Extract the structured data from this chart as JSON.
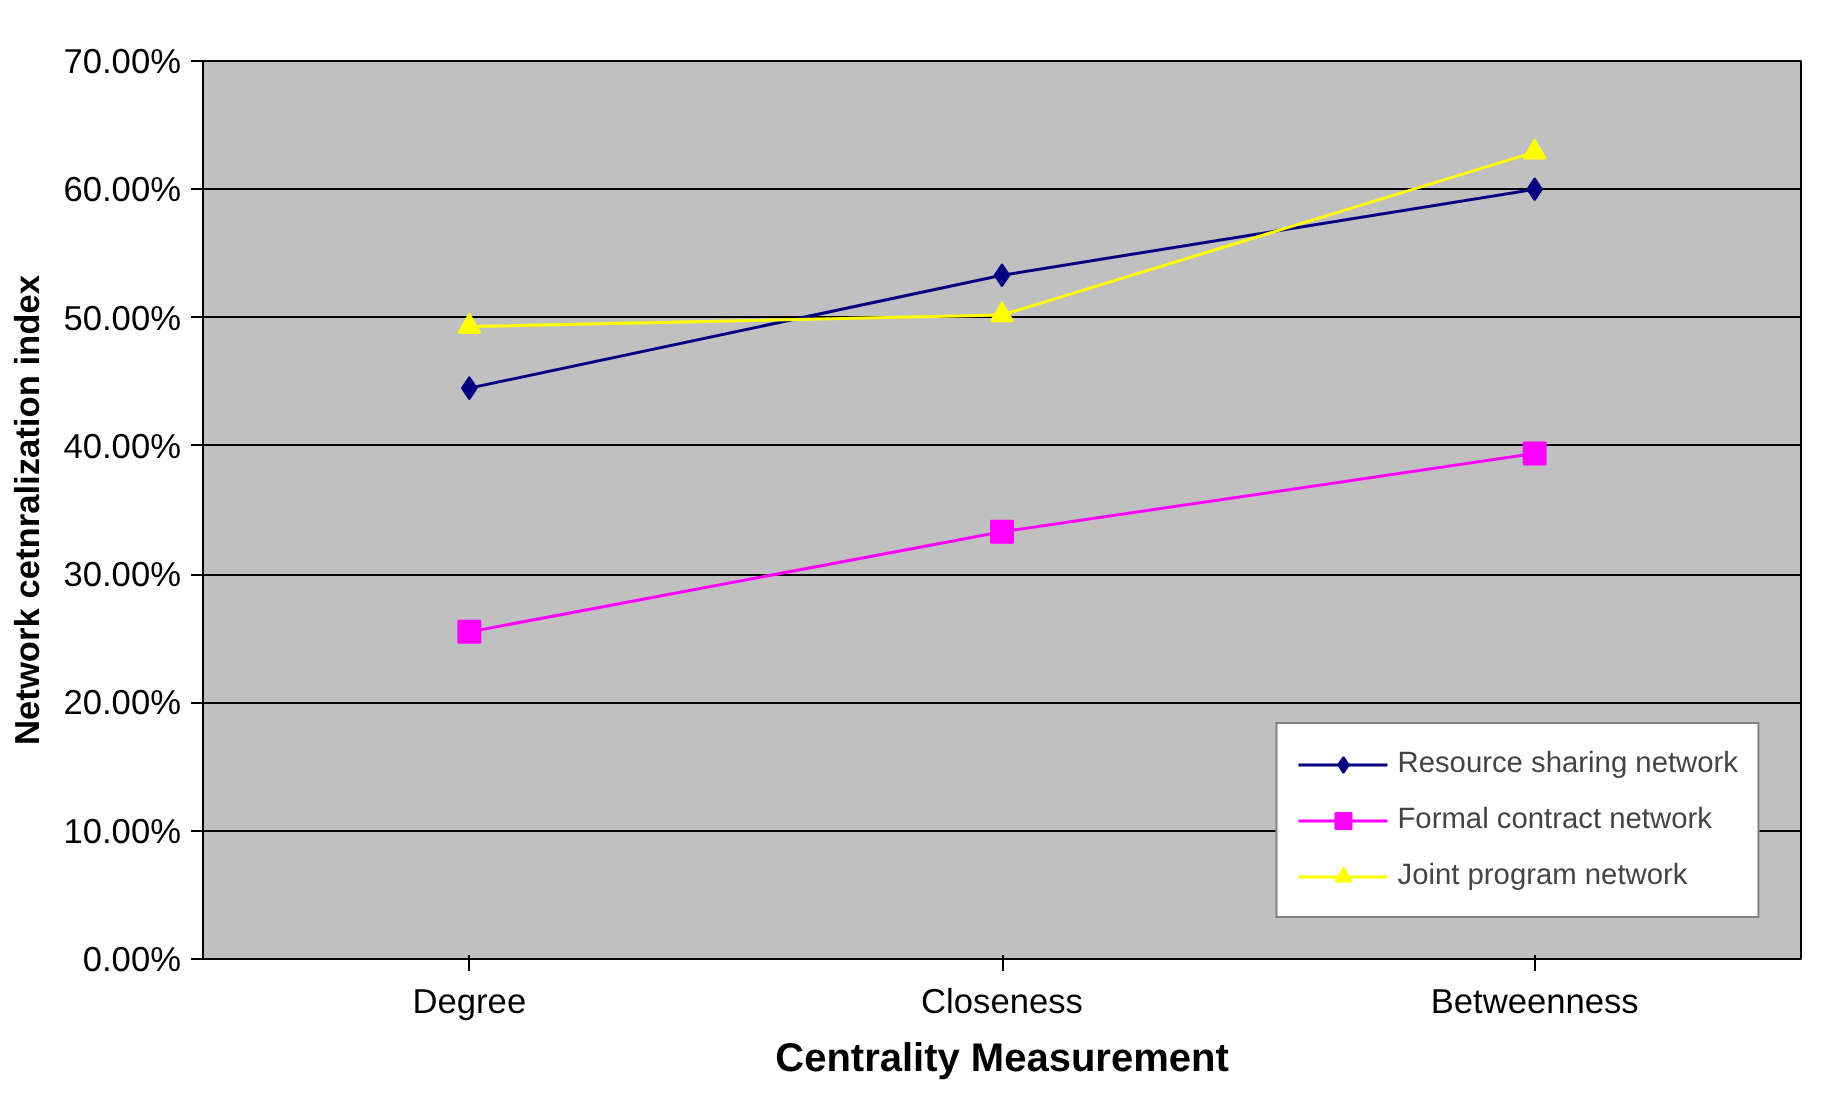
{
  "chart_data": {
    "type": "line",
    "xlabel": "Centrality Measurement",
    "ylabel": "Network cetnralization index",
    "categories": [
      "Degree",
      "Closeness",
      "Betweenness"
    ],
    "series": [
      {
        "name": "Resource sharing network",
        "color": "#000080",
        "marker": "diamond",
        "values": [
          44.5,
          53.3,
          60.0
        ]
      },
      {
        "name": "Formal contract network",
        "color": "#ff00ff",
        "marker": "square",
        "values": [
          25.5,
          33.3,
          39.4
        ]
      },
      {
        "name": "Joint program network",
        "color": "#ffff00",
        "marker": "triangle",
        "values": [
          49.3,
          50.2,
          62.9
        ]
      }
    ],
    "ylim": [
      0,
      70
    ],
    "yticks": [
      {
        "value": 0,
        "label": "0.00%"
      },
      {
        "value": 10,
        "label": "10.00%"
      },
      {
        "value": 20,
        "label": "20.00%"
      },
      {
        "value": 30,
        "label": "30.00%"
      },
      {
        "value": 40,
        "label": "40.00%"
      },
      {
        "value": 50,
        "label": "50.00%"
      },
      {
        "value": 60,
        "label": "60.00%"
      },
      {
        "value": 70,
        "label": "70.00%"
      }
    ],
    "grid": "y",
    "legend": "bottom right",
    "line_style": "solid"
  }
}
